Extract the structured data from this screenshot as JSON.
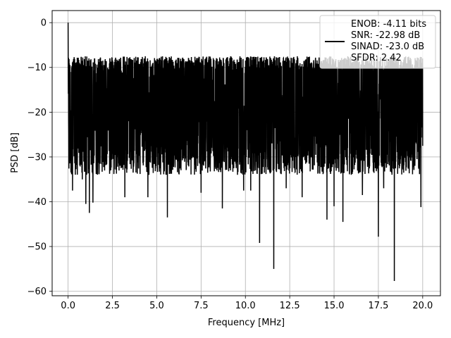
{
  "chart_data": {
    "type": "line",
    "title": "",
    "xlabel": "Frequency [MHz]",
    "ylabel": "PSD [dB]",
    "xlim": [
      -0.9,
      21.0
    ],
    "ylim": [
      -61.0,
      2.7
    ],
    "xticks": [
      0.0,
      2.5,
      5.0,
      7.5,
      10.0,
      12.5,
      15.0,
      17.5,
      20.0
    ],
    "xtick_labels": [
      "0.0",
      "2.5",
      "5.0",
      "7.5",
      "10.0",
      "12.5",
      "15.0",
      "17.5",
      "20.0"
    ],
    "yticks": [
      0,
      -10,
      -20,
      -30,
      -40,
      -50,
      -60
    ],
    "ytick_labels": [
      "0",
      "−10",
      "−20",
      "−30",
      "−40",
      "−50",
      "−60"
    ],
    "grid": true,
    "legend_position": "top-right",
    "legend_entries": [
      "ENOB: -4.11 bits",
      "SNR: -22.98 dB",
      "SINAD: -23.0 dB",
      "SFDR: 2.42"
    ],
    "series": [
      {
        "color": "#000000",
        "description": "dense noise-like PSD trace, mostly between -10 and -30 dB",
        "baseline_db": -19,
        "band_top_db": -9,
        "band_bottom_db": -33,
        "x_range": [
          0.0,
          20.0
        ],
        "peaks": [
          {
            "x": 0.0,
            "y": 0.0
          },
          {
            "x": 0.18,
            "y": -11.0
          }
        ],
        "dips": [
          {
            "x": 0.25,
            "y": -37.5
          },
          {
            "x": 0.8,
            "y": -35.0
          },
          {
            "x": 1.0,
            "y": -40.5
          },
          {
            "x": 1.2,
            "y": -42.5
          },
          {
            "x": 1.4,
            "y": -40.2
          },
          {
            "x": 3.2,
            "y": -39.0
          },
          {
            "x": 4.5,
            "y": -39.0
          },
          {
            "x": 5.6,
            "y": -43.5
          },
          {
            "x": 7.5,
            "y": -38.0
          },
          {
            "x": 8.7,
            "y": -41.5
          },
          {
            "x": 9.9,
            "y": -37.5
          },
          {
            "x": 10.3,
            "y": -37.5
          },
          {
            "x": 10.8,
            "y": -49.2
          },
          {
            "x": 11.6,
            "y": -55.0
          },
          {
            "x": 12.3,
            "y": -37.0
          },
          {
            "x": 13.2,
            "y": -39.0
          },
          {
            "x": 14.6,
            "y": -44.0
          },
          {
            "x": 15.0,
            "y": -41.0
          },
          {
            "x": 15.5,
            "y": -44.5
          },
          {
            "x": 16.6,
            "y": -38.5
          },
          {
            "x": 17.5,
            "y": -47.8
          },
          {
            "x": 17.8,
            "y": -37.0
          },
          {
            "x": 18.4,
            "y": -57.7
          },
          {
            "x": 19.9,
            "y": -41.2
          }
        ]
      }
    ]
  }
}
